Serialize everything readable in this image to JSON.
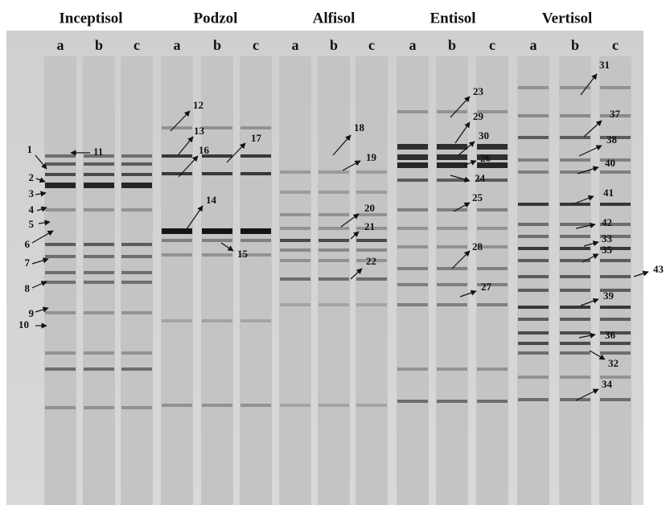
{
  "groups": [
    {
      "name": "Inceptisol",
      "lanes": [
        "a",
        "b",
        "c"
      ]
    },
    {
      "name": "Podzol",
      "lanes": [
        "a",
        "b",
        "c"
      ]
    },
    {
      "name": "Alfisol",
      "lanes": [
        "a",
        "b",
        "c"
      ]
    },
    {
      "name": "Entisol",
      "lanes": [
        "a",
        "b",
        "c"
      ]
    },
    {
      "name": "Vertisol",
      "lanes": [
        "a",
        "b",
        "c"
      ]
    }
  ],
  "band_labels": [
    "1",
    "2",
    "3",
    "4",
    "5",
    "6",
    "7",
    "8",
    "9",
    "10",
    "11",
    "12",
    "13",
    "16",
    "14",
    "15",
    "17",
    "18",
    "19",
    "20",
    "21",
    "22",
    "23",
    "29",
    "30",
    "26",
    "24",
    "25",
    "28",
    "27",
    "31",
    "37",
    "38",
    "40",
    "41",
    "42",
    "33",
    "35",
    "43",
    "39",
    "36",
    "32",
    "34"
  ]
}
